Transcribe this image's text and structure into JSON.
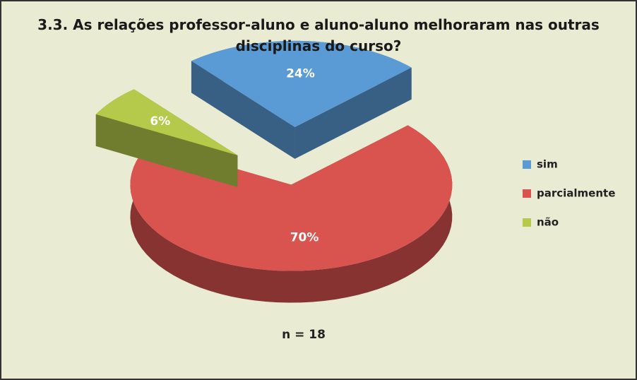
{
  "chart_data": {
    "type": "pie",
    "title": "3.3. As relações professor-aluno e aluno-aluno melhoraram nas outras disciplinas do curso?",
    "categories": [
      "sim",
      "parcialmente",
      "não"
    ],
    "values": [
      24,
      70,
      6
    ],
    "value_labels": [
      "24%",
      "70%",
      "6%"
    ],
    "colors": [
      "#5b9bd5",
      "#d9534f",
      "#b5c94a"
    ],
    "annotation": "n = 18",
    "legend": "right"
  }
}
